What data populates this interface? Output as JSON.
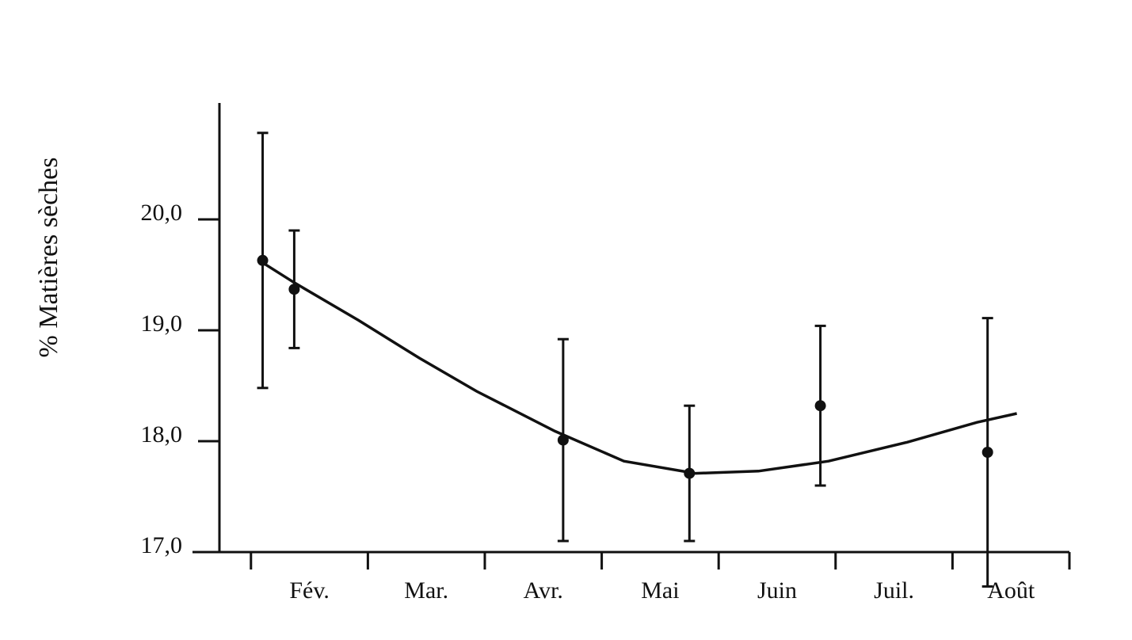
{
  "chart_data": {
    "type": "scatter",
    "y_label": "% Matières sèches",
    "categories": [
      "Fév.",
      "Mar.",
      "Avr.",
      "Mai",
      "Juin",
      "Juil.",
      "Août"
    ],
    "xlim": [
      0.5,
      8
    ],
    "xticks": [
      1,
      2,
      3,
      4,
      5,
      6,
      7,
      8
    ],
    "ylim": [
      17,
      21.05
    ],
    "yticks": [
      {
        "value": 17,
        "label": "17,0"
      },
      {
        "value": 18,
        "label": "18,0"
      },
      {
        "value": 19,
        "label": "19,0"
      },
      {
        "value": 20,
        "label": "20,0"
      }
    ],
    "color": "#111111",
    "points": {
      "x": [
        1.1,
        1.37,
        3.67,
        4.75,
        5.87,
        7.3
      ],
      "values": [
        19.63,
        19.37,
        18.01,
        17.71,
        18.32,
        17.9
      ],
      "errors": [
        1.15,
        0.53,
        0.91,
        0.61,
        0.72,
        1.21
      ]
    },
    "curve": {
      "x": [
        1.07,
        1.37,
        1.92,
        2.44,
        2.93,
        3.6,
        4.19,
        4.8,
        5.34,
        5.94,
        6.61,
        7.21,
        7.55
      ],
      "values": [
        19.63,
        19.43,
        19.09,
        18.75,
        18.45,
        18.09,
        17.82,
        17.71,
        17.73,
        17.82,
        17.99,
        18.17,
        18.25
      ]
    }
  }
}
